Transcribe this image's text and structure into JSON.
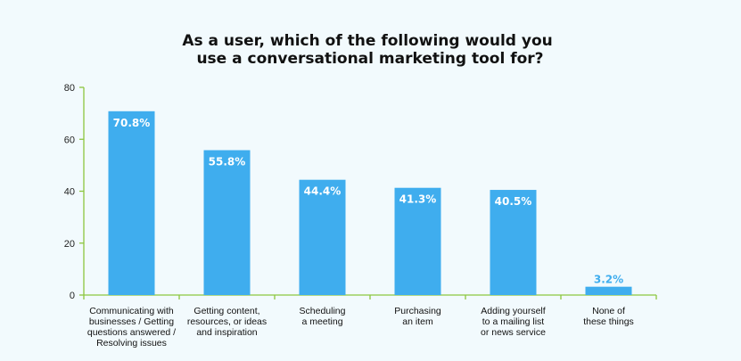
{
  "chart_data": {
    "type": "bar",
    "title": "As a user, which of the following would you use a conversational marketing tool for?",
    "title_lines": [
      "As a user, which of the following would you",
      "use a conversational marketing tool for?"
    ],
    "categories": [
      "Communicating with businesses / Getting questions answered / Resolving issues",
      "Getting content, resources, or ideas and inspiration",
      "Scheduling a meeting",
      "Purchasing an item",
      "Adding yourself to a mailing list or news service",
      "None of these things"
    ],
    "category_lines": [
      [
        "Communicating with",
        "businesses / Getting",
        "questions answered /",
        "Resolving issues"
      ],
      [
        "Getting content,",
        "resources, or ideas",
        "and inspiration"
      ],
      [
        "Scheduling",
        "a meeting"
      ],
      [
        "Purchasing",
        "an item"
      ],
      [
        "Adding yourself",
        "to a mailing list",
        "or news service"
      ],
      [
        "None of",
        "these things"
      ]
    ],
    "values": [
      70.8,
      55.8,
      44.4,
      41.3,
      40.5,
      3.2
    ],
    "data_labels": [
      "70.8%",
      "55.8%",
      "44.4%",
      "41.3%",
      "40.5%",
      "3.2%"
    ],
    "yticks": [
      "0",
      "20",
      "40",
      "60",
      "80"
    ],
    "ylim": [
      0,
      80
    ],
    "xlabel": "",
    "ylabel": "",
    "grid": false,
    "colors": {
      "bar": "#3fadee",
      "axis": "#8cc63f",
      "label_inside": "#ffffff",
      "label_outside": "#3fadee",
      "background": "#f2fafd"
    }
  }
}
